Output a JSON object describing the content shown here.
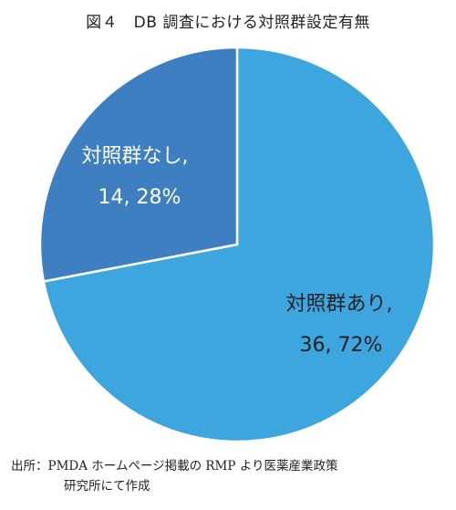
{
  "figure": {
    "title": "図４　DB 調査における対照群設定有無"
  },
  "chart_data": {
    "type": "pie",
    "title": "図４　DB 調査における対照群設定有無",
    "slices": [
      {
        "label": "対照群あり,",
        "value_label": "36, 72%",
        "value": 36,
        "percent": 72,
        "color": "#3ea6df"
      },
      {
        "label": "対照群なし,",
        "value_label": "14, 28%",
        "value": 14,
        "percent": 28,
        "color": "#3e7fc1"
      }
    ],
    "start_angle_deg": 0,
    "direction": "clockwise",
    "legend": "none"
  },
  "source": {
    "line1": "出所：PMDA ホームページ掲載の RMP より医薬産業政策",
    "line2": "研究所にて作成"
  }
}
